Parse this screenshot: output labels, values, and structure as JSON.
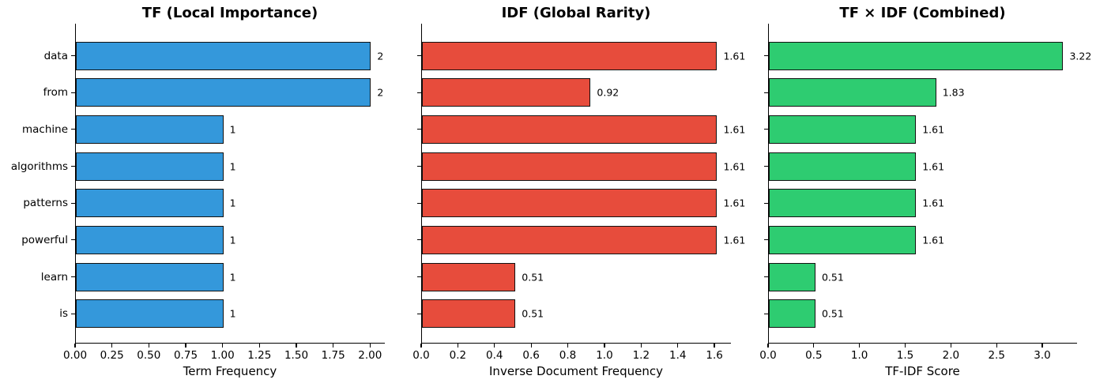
{
  "chart_data": [
    {
      "type": "bar",
      "orientation": "horizontal",
      "title": "TF (Local Importance)",
      "xlabel": "Term Frequency",
      "categories": [
        "data",
        "from",
        "machine",
        "algorithms",
        "patterns",
        "powerful",
        "learn",
        "is"
      ],
      "values": [
        2,
        2,
        1,
        1,
        1,
        1,
        1,
        1
      ],
      "bar_labels": [
        "2",
        "2",
        "1",
        "1",
        "1",
        "1",
        "1",
        "1"
      ],
      "xlim": [
        0,
        2.1
      ],
      "xtick_values": [
        0,
        0.25,
        0.5,
        0.75,
        1.0,
        1.25,
        1.5,
        1.75,
        2.0
      ],
      "xtick_labels": [
        "0.00",
        "0.25",
        "0.50",
        "0.75",
        "1.00",
        "1.25",
        "1.50",
        "1.75",
        "2.00"
      ],
      "show_ytick_labels": true,
      "bar_color": "#3498db",
      "bar_edge_color": "#111111",
      "grid": false,
      "legend": null
    },
    {
      "type": "bar",
      "orientation": "horizontal",
      "title": "IDF (Global Rarity)",
      "xlabel": "Inverse Document Frequency",
      "categories": [
        "data",
        "from",
        "machine",
        "algorithms",
        "patterns",
        "powerful",
        "learn",
        "is"
      ],
      "values": [
        1.61,
        0.92,
        1.61,
        1.61,
        1.61,
        1.61,
        0.51,
        0.51
      ],
      "bar_labels": [
        "1.61",
        "0.92",
        "1.61",
        "1.61",
        "1.61",
        "1.61",
        "0.51",
        "0.51"
      ],
      "xlim": [
        0,
        1.69
      ],
      "xtick_values": [
        0,
        0.2,
        0.4,
        0.6,
        0.8,
        1.0,
        1.2,
        1.4,
        1.6
      ],
      "xtick_labels": [
        "0.0",
        "0.2",
        "0.4",
        "0.6",
        "0.8",
        "1.0",
        "1.2",
        "1.4",
        "1.6"
      ],
      "show_ytick_labels": false,
      "bar_color": "#e74c3c",
      "bar_edge_color": "#111111",
      "grid": false,
      "legend": null
    },
    {
      "type": "bar",
      "orientation": "horizontal",
      "title": "TF × IDF (Combined)",
      "xlabel": "TF-IDF Score",
      "categories": [
        "data",
        "from",
        "machine",
        "algorithms",
        "patterns",
        "powerful",
        "learn",
        "is"
      ],
      "values": [
        3.22,
        1.83,
        1.61,
        1.61,
        1.61,
        1.61,
        0.51,
        0.51
      ],
      "bar_labels": [
        "3.22",
        "1.83",
        "1.61",
        "1.61",
        "1.61",
        "1.61",
        "0.51",
        "0.51"
      ],
      "xlim": [
        0,
        3.38
      ],
      "xtick_values": [
        0,
        0.5,
        1.0,
        1.5,
        2.0,
        2.5,
        3.0
      ],
      "xtick_labels": [
        "0.0",
        "0.5",
        "1.0",
        "1.5",
        "2.0",
        "2.5",
        "3.0"
      ],
      "show_ytick_labels": false,
      "bar_color": "#2ecc71",
      "bar_edge_color": "#111111",
      "grid": false,
      "legend": null
    }
  ]
}
